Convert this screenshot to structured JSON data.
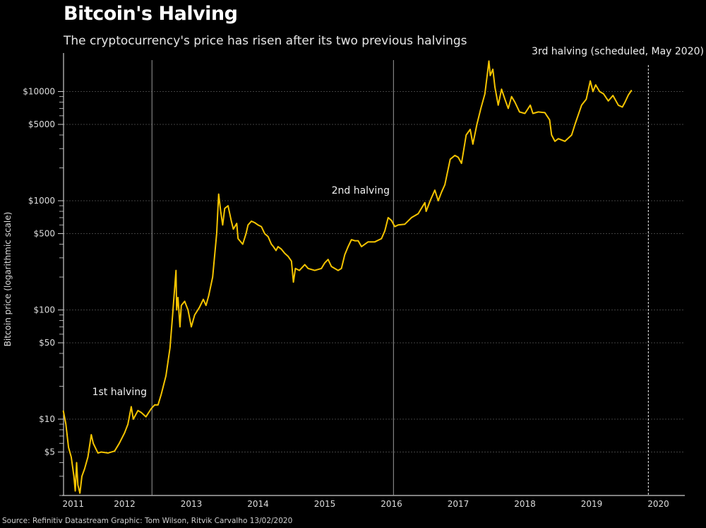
{
  "header": {
    "title": "Bitcoin's Halving",
    "subtitle": "The cryptocurrency's price has risen after its two previous halvings"
  },
  "footer": {
    "source": "Source: Refinitiv Datastream   Graphic: Tom Wilson, Ritvik Carvalho 13/02/2020"
  },
  "chart_data": {
    "type": "line",
    "title": "Bitcoin's Halving",
    "xlabel": "",
    "ylabel": "Bitcoin price (logarithmic scale)",
    "yscale": "log",
    "ylim": [
      2,
      20000
    ],
    "xlim": [
      2011.58,
      2020.9
    ],
    "grid": true,
    "line_color": "#f5c400",
    "y_ticks": [
      {
        "value": 5,
        "label": "$5"
      },
      {
        "value": 10,
        "label": "$10"
      },
      {
        "value": 50,
        "label": "$50"
      },
      {
        "value": 100,
        "label": "$100"
      },
      {
        "value": 500,
        "label": "$500"
      },
      {
        "value": 1000,
        "label": "$1000"
      },
      {
        "value": 5000,
        "label": "$5000"
      },
      {
        "value": 10000,
        "label": "$10000"
      }
    ],
    "x_ticks": [
      {
        "value": 2011.73,
        "label": "2011"
      },
      {
        "value": 2012.5,
        "label": "2012"
      },
      {
        "value": 2013.5,
        "label": "2013"
      },
      {
        "value": 2014.5,
        "label": "2014"
      },
      {
        "value": 2015.5,
        "label": "2015"
      },
      {
        "value": 2016.5,
        "label": "2016"
      },
      {
        "value": 2017.5,
        "label": "2017"
      },
      {
        "value": 2018.5,
        "label": "2018"
      },
      {
        "value": 2019.5,
        "label": "2019"
      },
      {
        "value": 2020.5,
        "label": "2020"
      }
    ],
    "annotations": [
      {
        "label": "1st halving",
        "x": 2012.91,
        "style": "solid"
      },
      {
        "label": "2nd halving",
        "x": 2016.53,
        "style": "solid"
      },
      {
        "label": "3rd halving (scheduled, May 2020)",
        "x": 2020.35,
        "style": "dashed"
      }
    ],
    "series": [
      {
        "name": "Bitcoin price",
        "points": [
          [
            2011.58,
            12
          ],
          [
            2011.62,
            9
          ],
          [
            2011.66,
            5.5
          ],
          [
            2011.7,
            4.5
          ],
          [
            2011.74,
            3
          ],
          [
            2011.76,
            2.2
          ],
          [
            2011.78,
            4
          ],
          [
            2011.8,
            2.5
          ],
          [
            2011.83,
            2.1
          ],
          [
            2011.86,
            3
          ],
          [
            2011.9,
            3.5
          ],
          [
            2011.95,
            4.5
          ],
          [
            2012.0,
            7.2
          ],
          [
            2012.03,
            6.0
          ],
          [
            2012.06,
            5.5
          ],
          [
            2012.1,
            4.9
          ],
          [
            2012.15,
            5.0
          ],
          [
            2012.25,
            4.9
          ],
          [
            2012.35,
            5.1
          ],
          [
            2012.42,
            6
          ],
          [
            2012.5,
            7.5
          ],
          [
            2012.55,
            9
          ],
          [
            2012.6,
            13
          ],
          [
            2012.63,
            10
          ],
          [
            2012.7,
            12
          ],
          [
            2012.75,
            11.5
          ],
          [
            2012.82,
            10.5
          ],
          [
            2012.9,
            12.5
          ],
          [
            2012.95,
            13.5
          ],
          [
            2013.0,
            13.5
          ],
          [
            2013.05,
            17
          ],
          [
            2013.12,
            25
          ],
          [
            2013.18,
            45
          ],
          [
            2013.22,
            90
          ],
          [
            2013.27,
            230
          ],
          [
            2013.28,
            100
          ],
          [
            2013.3,
            130
          ],
          [
            2013.33,
            70
          ],
          [
            2013.35,
            110
          ],
          [
            2013.4,
            120
          ],
          [
            2013.45,
            100
          ],
          [
            2013.5,
            70
          ],
          [
            2013.55,
            90
          ],
          [
            2013.62,
            105
          ],
          [
            2013.68,
            125
          ],
          [
            2013.72,
            110
          ],
          [
            2013.76,
            135
          ],
          [
            2013.82,
            200
          ],
          [
            2013.88,
            500
          ],
          [
            2013.91,
            1150
          ],
          [
            2013.94,
            800
          ],
          [
            2013.97,
            600
          ],
          [
            2014.0,
            850
          ],
          [
            2014.05,
            900
          ],
          [
            2014.1,
            650
          ],
          [
            2014.13,
            550
          ],
          [
            2014.18,
            620
          ],
          [
            2014.2,
            450
          ],
          [
            2014.27,
            400
          ],
          [
            2014.32,
            500
          ],
          [
            2014.35,
            600
          ],
          [
            2014.4,
            650
          ],
          [
            2014.45,
            630
          ],
          [
            2014.5,
            600
          ],
          [
            2014.55,
            580
          ],
          [
            2014.6,
            500
          ],
          [
            2014.65,
            470
          ],
          [
            2014.7,
            400
          ],
          [
            2014.73,
            380
          ],
          [
            2014.77,
            350
          ],
          [
            2014.8,
            380
          ],
          [
            2014.85,
            360
          ],
          [
            2014.9,
            330
          ],
          [
            2014.95,
            310
          ],
          [
            2015.0,
            280
          ],
          [
            2015.03,
            180
          ],
          [
            2015.06,
            240
          ],
          [
            2015.12,
            230
          ],
          [
            2015.2,
            260
          ],
          [
            2015.25,
            240
          ],
          [
            2015.35,
            230
          ],
          [
            2015.45,
            240
          ],
          [
            2015.5,
            270
          ],
          [
            2015.55,
            290
          ],
          [
            2015.6,
            250
          ],
          [
            2015.7,
            230
          ],
          [
            2015.75,
            240
          ],
          [
            2015.8,
            320
          ],
          [
            2015.85,
            380
          ],
          [
            2015.9,
            440
          ],
          [
            2015.95,
            430
          ],
          [
            2016.0,
            430
          ],
          [
            2016.05,
            380
          ],
          [
            2016.15,
            420
          ],
          [
            2016.25,
            420
          ],
          [
            2016.35,
            450
          ],
          [
            2016.4,
            530
          ],
          [
            2016.45,
            700
          ],
          [
            2016.5,
            660
          ],
          [
            2016.55,
            580
          ],
          [
            2016.6,
            600
          ],
          [
            2016.7,
            610
          ],
          [
            2016.8,
            700
          ],
          [
            2016.9,
            760
          ],
          [
            2017.0,
            960
          ],
          [
            2017.02,
            800
          ],
          [
            2017.08,
            1000
          ],
          [
            2017.15,
            1250
          ],
          [
            2017.2,
            1000
          ],
          [
            2017.25,
            1200
          ],
          [
            2017.3,
            1400
          ],
          [
            2017.38,
            2400
          ],
          [
            2017.45,
            2600
          ],
          [
            2017.5,
            2500
          ],
          [
            2017.55,
            2200
          ],
          [
            2017.62,
            4000
          ],
          [
            2017.68,
            4500
          ],
          [
            2017.72,
            3300
          ],
          [
            2017.78,
            5000
          ],
          [
            2017.84,
            7000
          ],
          [
            2017.9,
            9500
          ],
          [
            2017.94,
            15000
          ],
          [
            2017.96,
            19000
          ],
          [
            2017.98,
            14000
          ],
          [
            2018.02,
            16000
          ],
          [
            2018.05,
            11000
          ],
          [
            2018.1,
            7500
          ],
          [
            2018.15,
            10500
          ],
          [
            2018.2,
            8500
          ],
          [
            2018.25,
            7000
          ],
          [
            2018.3,
            9000
          ],
          [
            2018.35,
            8000
          ],
          [
            2018.42,
            6500
          ],
          [
            2018.5,
            6300
          ],
          [
            2018.58,
            7500
          ],
          [
            2018.62,
            6300
          ],
          [
            2018.7,
            6500
          ],
          [
            2018.8,
            6400
          ],
          [
            2018.87,
            5500
          ],
          [
            2018.9,
            4000
          ],
          [
            2018.95,
            3500
          ],
          [
            2019.0,
            3700
          ],
          [
            2019.1,
            3500
          ],
          [
            2019.2,
            4000
          ],
          [
            2019.25,
            5000
          ],
          [
            2019.35,
            7500
          ],
          [
            2019.42,
            8500
          ],
          [
            2019.48,
            12500
          ],
          [
            2019.52,
            10000
          ],
          [
            2019.56,
            11500
          ],
          [
            2019.62,
            10000
          ],
          [
            2019.68,
            9500
          ],
          [
            2019.75,
            8200
          ],
          [
            2019.82,
            9200
          ],
          [
            2019.9,
            7500
          ],
          [
            2019.96,
            7200
          ],
          [
            2020.0,
            8000
          ],
          [
            2020.05,
            9300
          ],
          [
            2020.1,
            10300
          ]
        ]
      }
    ]
  }
}
